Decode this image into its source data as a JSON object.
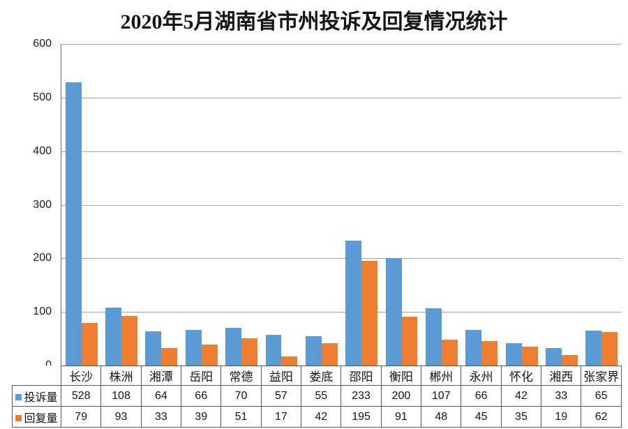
{
  "chart_data": {
    "type": "bar",
    "title": "2020年5月湖南省市州投诉及回复情况统计",
    "categories": [
      "长沙",
      "株洲",
      "湘潭",
      "岳阳",
      "常德",
      "益阳",
      "娄底",
      "邵阳",
      "衡阳",
      "郴州",
      "永州",
      "怀化",
      "湘西",
      "张家界"
    ],
    "series": [
      {
        "name": "投诉量",
        "color": "#5B9BD5",
        "values": [
          528,
          108,
          64,
          66,
          70,
          57,
          55,
          233,
          200,
          107,
          66,
          42,
          33,
          65
        ]
      },
      {
        "name": "回复量",
        "color": "#ED7D31",
        "values": [
          79,
          93,
          33,
          39,
          51,
          17,
          42,
          195,
          91,
          48,
          45,
          35,
          19,
          62
        ]
      }
    ],
    "xlabel": "",
    "ylabel": "",
    "ylim": [
      0,
      600
    ],
    "yticks": [
      0,
      100,
      200,
      300,
      400,
      500,
      600
    ],
    "grid": "horizontal",
    "legend_position": "data-table-left",
    "colors": {
      "grid_line": "#a3a3a3",
      "axis_line": "#6e6e6e",
      "table_border": "#565656",
      "background": "#ffffff",
      "text": "#141414"
    }
  }
}
